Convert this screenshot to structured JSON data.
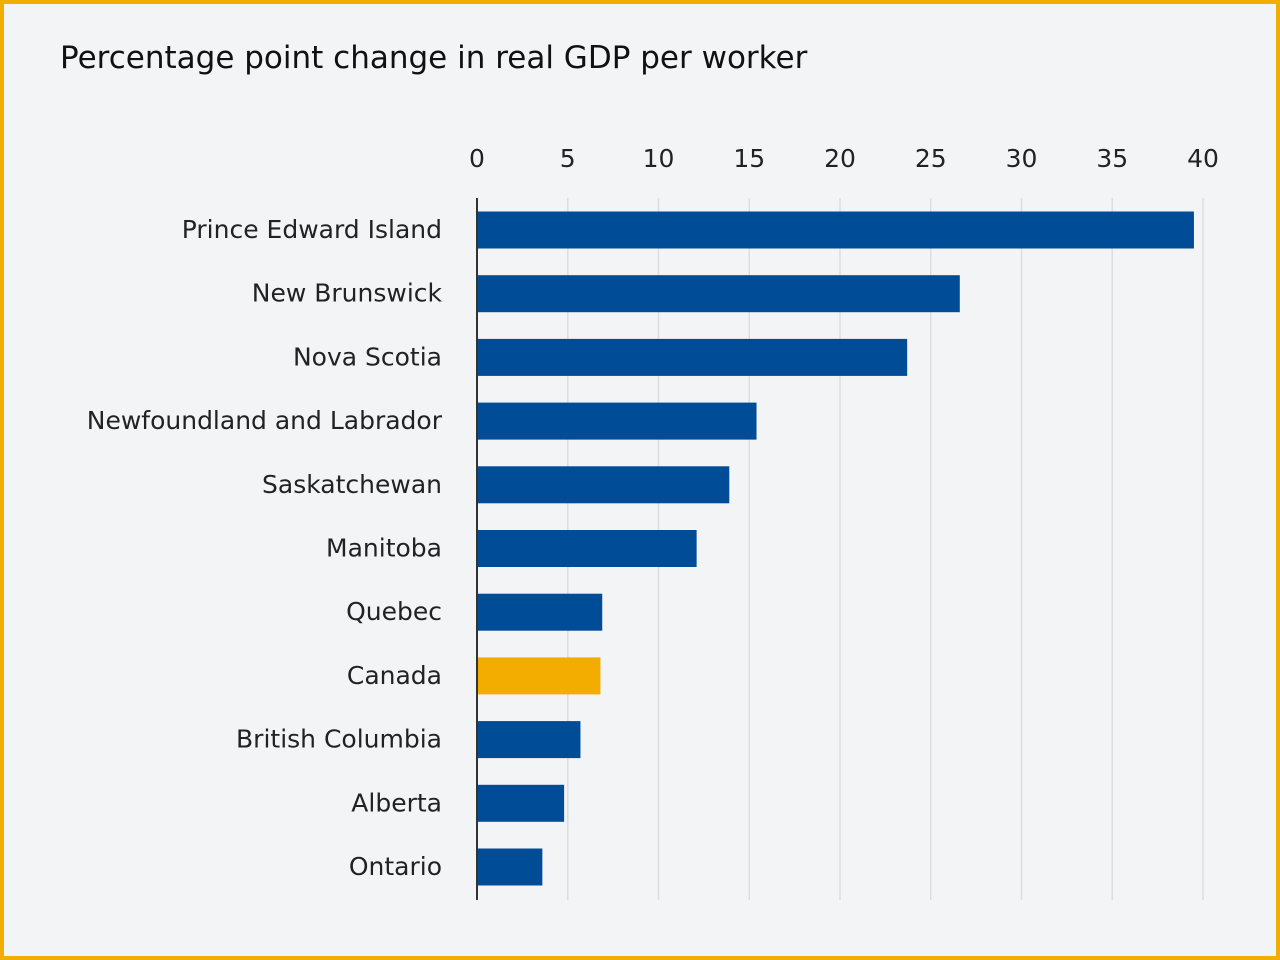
{
  "chart_data": {
    "type": "bar",
    "orientation": "horizontal",
    "title": "Percentage point change in real GDP per worker",
    "xlabel": "",
    "ylabel": "",
    "xlim": [
      0,
      40
    ],
    "xticks": [
      "0",
      "5",
      "10",
      "15",
      "20",
      "25",
      "30",
      "35",
      "40"
    ],
    "grid": true,
    "categories": [
      "Prince Edward Island",
      "New Brunswick",
      "Nova Scotia",
      "Newfoundland and Labrador",
      "Saskatchewan",
      "Manitoba",
      "Quebec",
      "Canada",
      "British Columbia",
      "Alberta",
      "Ontario"
    ],
    "values": [
      39.5,
      26.6,
      23.7,
      15.4,
      13.9,
      12.1,
      6.9,
      6.8,
      5.7,
      4.8,
      3.6
    ],
    "highlight": "Canada",
    "colors": {
      "default": "#004c97",
      "highlight": "#f3ad00",
      "border": "#f2ae00",
      "background": "#f3f4f6",
      "grid": "#dcdde0"
    }
  }
}
